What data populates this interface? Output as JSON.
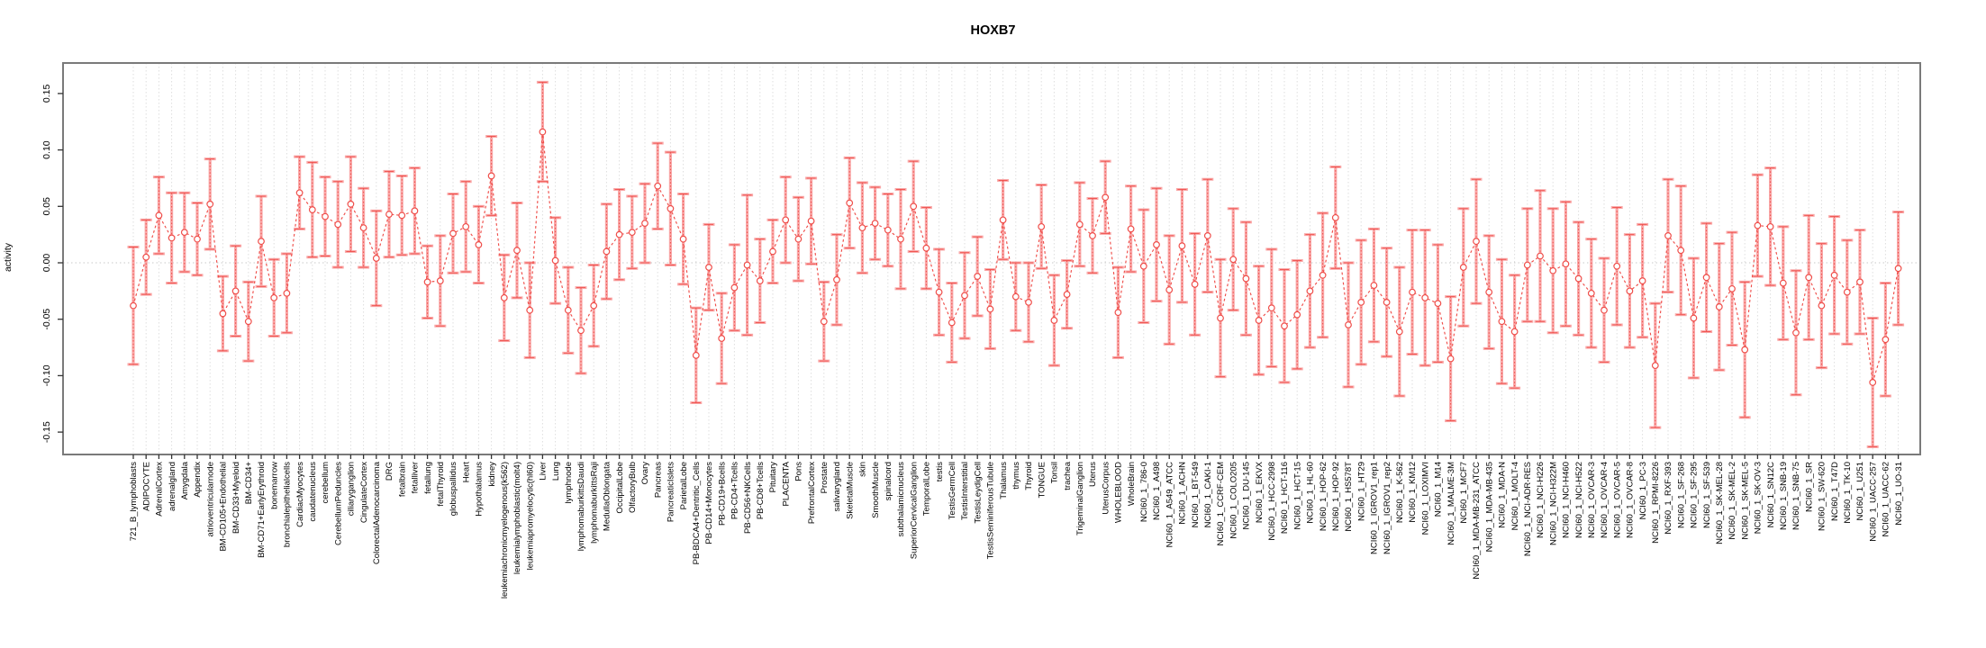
{
  "chart_data": {
    "type": "line",
    "title": "HOXB7",
    "ylabel": "activity",
    "xlabel": "",
    "ylim": [
      -0.17,
      0.177
    ],
    "yticks": [
      0.15,
      0.1,
      0.05,
      0.0,
      -0.05,
      -0.1,
      -0.15
    ],
    "grid": "vertical dotted gridline per category; dotted horizontal line at zero",
    "legend_position": "none",
    "marker": "open-circle",
    "line_style": "dashed",
    "colors": {
      "series": "#ef4e4a",
      "error_bar_fill": "#f9a8a8",
      "gridline": "#dedede",
      "zero_line": "#c9c9c9",
      "plot_border": "#7a7a7a",
      "text": "#000000",
      "background": "#ffffff"
    },
    "categories": [
      "721_B_lymphoblasts",
      "ADIPOCYTE",
      "AdrenalCortex",
      "adrenalgland",
      "Amygdala",
      "Appendix",
      "atrioventricularnode",
      "BM-CD105+Endothelial",
      "BM-CD33+Myeloid",
      "BM-CD34+",
      "BM-CD71+EarlyErythroid",
      "bonemarrow",
      "bronchialepithelialcells",
      "CardiacMyocytes",
      "caudatenucleus",
      "cerebellum",
      "CerebellumPeduncles",
      "ciliaryganglion",
      "CingulateCortex",
      "ColorectalAdenocarcinoma",
      "DRG",
      "fetalbrain",
      "fetalliver",
      "fetallung",
      "fetalThyroid",
      "globuspallidus",
      "Heart",
      "Hypothalamus",
      "kidney",
      "leukemiachronicmyelogenous(k562)",
      "leukemialymphoblastic(molt4)",
      "leukemiapromyelocytic(hl60)",
      "Liver",
      "Lung",
      "lymphnode",
      "lymphomaburkittsDaudi",
      "lymphomaburkittsRaji",
      "MedullaOblongata",
      "OccipitalLobe",
      "OlfactoryBulb",
      "Ovary",
      "Pancreas",
      "PancreaticIslets",
      "ParietalLobe",
      "PB-BDCA4+Dentritic_Cells",
      "PB-CD14+Monocytes",
      "PB-CD19+Bcells",
      "PB-CD4+Tcells",
      "PB-CD56+NKCells",
      "PB-CD8+Tcells",
      "Pituitary",
      "PLACENTA",
      "Pons",
      "PrefrontalCortex",
      "Prostate",
      "salivarygland",
      "SkeletalMuscle",
      "skin",
      "SmoothMuscle",
      "spinalcord",
      "subthalamicnucleus",
      "SuperiorCervicalGanglion",
      "TemporalLobe",
      "testis",
      "TestisGermCell",
      "TestisInterstitial",
      "TestisLeydigCell",
      "TestisSeminiferousTubule",
      "Thalamus",
      "thymus",
      "Thyroid",
      "TONGUE",
      "Tonsil",
      "trachea",
      "TrigeminalGanglion",
      "Uterus",
      "UterusCorpus",
      "WHOLEBLOOD",
      "WholeBrain",
      "NCI60_1_786-0",
      "NCI60_1_A498",
      "NCI60_1_A549_ATCC",
      "NCI60_1_ACHN",
      "NCI60_1_BT-549",
      "NCI60_1_CAKI-1",
      "NCI60_1_CCRF-CEM",
      "NCI60_1_COLO205",
      "NCI60_1_DU-145",
      "NCI60_1_EKVX",
      "NCI60_1_HCC-2998",
      "NCI60_1_HCT-116",
      "NCI60_1_HCT-15",
      "NCI60_1_HL-60",
      "NCI60_1_HOP-62",
      "NCI60_1_HOP-92",
      "NCI60_1_HS578T",
      "NCI60_1_HT29",
      "NCI60_1_IGROV1_rep1",
      "NCI60_1_IGROV1_rep2",
      "NCI60_1_K-562",
      "NCI60_1_KM12",
      "NCI60_1_LOXIMVI",
      "NCI60_1_M14",
      "NCI60_1_MALME-3M",
      "NCI60_1_MCF7",
      "NCI60_1_MDA-MB-231_ATCC",
      "NCI60_1_MDA-MB-435",
      "NCI60_1_MDA-N",
      "NCI60_1_MOLT-4",
      "NCI60_1_NCI-ADR-RES",
      "NCI60_1_NCI-H226",
      "NCI60_1_NCI-H322M",
      "NCI60_1_NCI-H460",
      "NCI60_1_NCI-H522",
      "NCI60_1_OVCAR-3",
      "NCI60_1_OVCAR-4",
      "NCI60_1_OVCAR-5",
      "NCI60_1_OVCAR-8",
      "NCI60_1_PC-3",
      "NCI60_1_RPMI-8226",
      "NCI60_1_RXF-393",
      "NCI60_1_SF-268",
      "NCI60_1_SF-295",
      "NCI60_1_SF-539",
      "NCI60_1_SK-MEL-28",
      "NCI60_1_SK-MEL-2",
      "NCI60_1_SK-MEL-5",
      "NCI60_1_SK-OV-3",
      "NCI60_1_SN12C",
      "NCI60_1_SNB-19",
      "NCI60_1_SNB-75",
      "NCI60_1_SR",
      "NCI60_1_SW-620",
      "NCI60_1_T47D",
      "NCI60_1_TK-10",
      "NCI60_1_U251",
      "NCI60_1_UACC-257",
      "NCI60_1_UACC-62",
      "NCI60_1_UO-31"
    ],
    "values": [
      -0.038,
      0.005,
      0.042,
      0.022,
      0.027,
      0.021,
      0.052,
      -0.045,
      -0.025,
      -0.052,
      0.019,
      -0.031,
      -0.027,
      0.062,
      0.047,
      0.041,
      0.034,
      0.052,
      0.031,
      0.004,
      0.043,
      0.042,
      0.046,
      -0.017,
      -0.016,
      0.026,
      0.032,
      0.016,
      0.077,
      -0.031,
      0.011,
      -0.042,
      0.116,
      0.002,
      -0.042,
      -0.06,
      -0.038,
      0.01,
      0.025,
      0.027,
      0.035,
      0.068,
      0.048,
      0.021,
      -0.082,
      -0.004,
      -0.067,
      -0.022,
      -0.002,
      -0.016,
      0.01,
      0.038,
      0.021,
      0.037,
      -0.052,
      -0.015,
      0.053,
      0.031,
      0.035,
      0.029,
      0.021,
      0.05,
      0.013,
      -0.026,
      -0.053,
      -0.029,
      -0.012,
      -0.041,
      0.038,
      -0.03,
      -0.035,
      0.032,
      -0.051,
      -0.028,
      0.034,
      0.024,
      0.058,
      -0.044,
      0.03,
      -0.003,
      0.016,
      -0.024,
      0.015,
      -0.019,
      0.024,
      -0.049,
      0.003,
      -0.014,
      -0.051,
      -0.04,
      -0.056,
      -0.046,
      -0.025,
      -0.011,
      0.04,
      -0.055,
      -0.035,
      -0.02,
      -0.035,
      -0.061,
      -0.026,
      -0.031,
      -0.036,
      -0.085,
      -0.004,
      0.019,
      -0.026,
      -0.052,
      -0.061,
      -0.002,
      0.006,
      -0.007,
      -0.001,
      -0.014,
      -0.027,
      -0.042,
      -0.003,
      -0.025,
      -0.016,
      -0.091,
      0.024,
      0.011,
      -0.049,
      -0.013,
      -0.039,
      -0.023,
      -0.077,
      0.033,
      0.032,
      -0.018,
      -0.062,
      -0.013,
      -0.038,
      -0.011,
      -0.026,
      -0.017,
      -0.106,
      -0.068,
      -0.005
    ],
    "errors": [
      0.052,
      0.033,
      0.034,
      0.04,
      0.035,
      0.032,
      0.04,
      0.033,
      0.04,
      0.035,
      0.04,
      0.034,
      0.035,
      0.032,
      0.042,
      0.035,
      0.038,
      0.042,
      0.035,
      0.042,
      0.038,
      0.035,
      0.038,
      0.032,
      0.04,
      0.035,
      0.04,
      0.034,
      0.035,
      0.038,
      0.042,
      0.042,
      0.044,
      0.038,
      0.038,
      0.038,
      0.036,
      0.042,
      0.04,
      0.032,
      0.035,
      0.038,
      0.05,
      0.04,
      0.042,
      0.038,
      0.04,
      0.038,
      0.062,
      0.037,
      0.028,
      0.038,
      0.037,
      0.038,
      0.035,
      0.04,
      0.04,
      0.04,
      0.032,
      0.032,
      0.044,
      0.04,
      0.036,
      0.038,
      0.035,
      0.038,
      0.035,
      0.035,
      0.035,
      0.03,
      0.035,
      0.037,
      0.04,
      0.03,
      0.037,
      0.033,
      0.032,
      0.04,
      0.038,
      0.05,
      0.05,
      0.048,
      0.05,
      0.045,
      0.05,
      0.052,
      0.045,
      0.05,
      0.048,
      0.052,
      0.05,
      0.048,
      0.05,
      0.055,
      0.045,
      0.055,
      0.055,
      0.05,
      0.048,
      0.057,
      0.055,
      0.06,
      0.052,
      0.055,
      0.052,
      0.055,
      0.05,
      0.055,
      0.05,
      0.05,
      0.058,
      0.055,
      0.055,
      0.05,
      0.048,
      0.046,
      0.052,
      0.05,
      0.05,
      0.055,
      0.05,
      0.057,
      0.053,
      0.048,
      0.056,
      0.05,
      0.06,
      0.045,
      0.052,
      0.05,
      0.055,
      0.055,
      0.055,
      0.052,
      0.046,
      0.046,
      0.057,
      0.05,
      0.05
    ]
  }
}
